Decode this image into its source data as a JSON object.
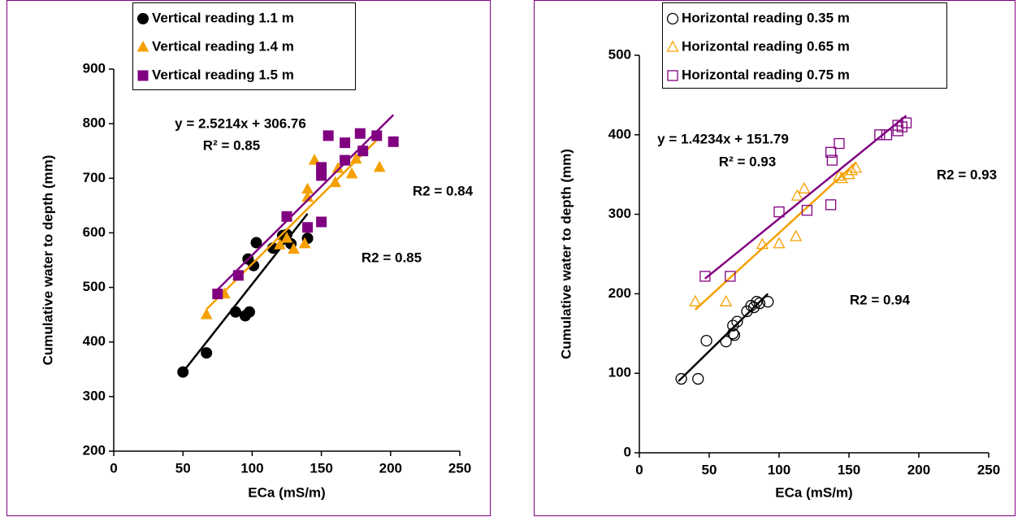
{
  "chart_data": [
    {
      "type": "scatter",
      "xlabel": "ECa  (mS/m)",
      "ylabel": "Cumulative water to depth (mm)",
      "xlim": [
        0,
        250
      ],
      "xticks": [
        0,
        50,
        100,
        150,
        200,
        250
      ],
      "ylim": [
        200,
        900
      ],
      "yticks": [
        200,
        300,
        400,
        500,
        600,
        700,
        800,
        900
      ],
      "grid": false,
      "legend": "top",
      "series": [
        {
          "name": "Vertical reading 1.1 m",
          "color": "#000000",
          "marker": "circle",
          "filled": true,
          "x": [
            50,
            67,
            88,
            95,
            98,
            97,
            103,
            101,
            115,
            122,
            125,
            128,
            140
          ],
          "values": [
            345,
            380,
            455,
            448,
            455,
            552,
            582,
            540,
            572,
            595,
            597,
            580,
            590
          ],
          "trend": {
            "x": [
              50,
              140
            ],
            "y": [
              345,
              635
            ]
          }
        },
        {
          "name": "Vertical reading 1.4 m",
          "color": "#f5a000",
          "marker": "triangle",
          "filled": true,
          "x": [
            67,
            80,
            90,
            120,
            125,
            130,
            138,
            140,
            140,
            145,
            160,
            162,
            172,
            175,
            192
          ],
          "values": [
            450,
            488,
            522,
            578,
            590,
            570,
            580,
            665,
            680,
            733,
            692,
            718,
            708,
            735,
            720
          ],
          "trend": {
            "x": [
              67,
              192
            ],
            "y": [
              460,
              775
            ]
          }
        },
        {
          "name": "Vertical reading 1.5 m",
          "color": "#800080",
          "marker": "square",
          "filled": true,
          "x": [
            75,
            90,
            125,
            140,
            150,
            150,
            150,
            155,
            167,
            167,
            178,
            180,
            190,
            202
          ],
          "values": [
            488,
            522,
            630,
            610,
            705,
            720,
            620,
            778,
            765,
            733,
            782,
            750,
            778,
            767
          ],
          "trend": {
            "x": [
              75,
              202
            ],
            "y": [
              496,
              816
            ]
          }
        }
      ],
      "annotations": [
        "y = 2.5214x + 306.76",
        "R² = 0.85",
        "R2 = 0.84",
        "R2 = 0.85"
      ]
    },
    {
      "type": "scatter",
      "xlabel": "ECa  (mS/m)",
      "ylabel": "Cumulative water to depth (mm)",
      "xlim": [
        0,
        250
      ],
      "xticks": [
        0,
        50,
        100,
        150,
        200,
        250
      ],
      "ylim": [
        0,
        500
      ],
      "yticks": [
        0,
        100,
        200,
        300,
        400,
        500
      ],
      "grid": false,
      "legend": "top",
      "series": [
        {
          "name": "Horizontal reading 0.35 m",
          "color": "#000000",
          "marker": "circle",
          "filled": false,
          "x": [
            30,
            42,
            48,
            62,
            67,
            67,
            68,
            70,
            77,
            80,
            82,
            84,
            86,
            92
          ],
          "values": [
            93,
            93,
            141,
            140,
            150,
            160,
            148,
            165,
            178,
            185,
            183,
            190,
            188,
            190
          ],
          "trend": {
            "x": [
              28,
              92
            ],
            "y": [
              90,
              200
            ]
          }
        },
        {
          "name": "Horizontal reading 0.65 m",
          "color": "#f5a000",
          "marker": "triangle",
          "filled": false,
          "x": [
            40,
            62,
            88,
            100,
            112,
            113,
            118,
            143,
            145,
            150,
            152,
            155
          ],
          "values": [
            190,
            190,
            262,
            263,
            272,
            323,
            332,
            348,
            345,
            350,
            355,
            358
          ],
          "trend": {
            "x": [
              40,
              155
            ],
            "y": [
              180,
              365
            ]
          }
        },
        {
          "name": "Horizontal reading 0.75 m",
          "color": "#800080",
          "marker": "square",
          "filled": false,
          "x": [
            47,
            65,
            100,
            120,
            137,
            137,
            138,
            143,
            172,
            177,
            185,
            185,
            188,
            191
          ],
          "values": [
            222,
            222,
            303,
            305,
            312,
            378,
            368,
            389,
            400,
            400,
            405,
            412,
            410,
            415
          ],
          "trend": {
            "x": [
              47,
              191
            ],
            "y": [
              219,
              424
            ]
          }
        }
      ],
      "annotations": [
        "y = 1.4234x + 151.79",
        "R² = 0.93",
        "R2 = 0.93",
        "R2 = 0.94"
      ]
    }
  ]
}
